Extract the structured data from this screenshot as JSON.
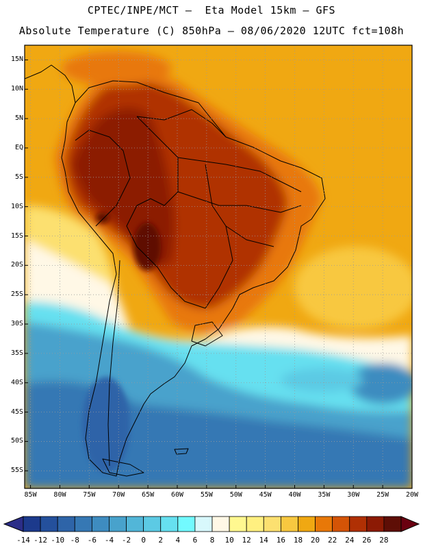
{
  "title": {
    "line1": "CPTEC/INPE/MCT –  Eta Model 15km – GFS",
    "line2": "Absolute Temperature (C) 850hPa – 08/06/2020 12UTC fct=108h"
  },
  "map": {
    "lat_labels": [
      "15N",
      "10N",
      "5N",
      "EQ",
      "5S",
      "10S",
      "15S",
      "20S",
      "25S",
      "30S",
      "35S",
      "40S",
      "45S",
      "50S",
      "55S"
    ],
    "lat_values": [
      15,
      10,
      5,
      0,
      -5,
      -10,
      -15,
      -20,
      -25,
      -30,
      -35,
      -40,
      -45,
      -50,
      -55
    ],
    "lon_labels": [
      "85W",
      "80W",
      "75W",
      "70W",
      "65W",
      "60W",
      "55W",
      "50W",
      "45W",
      "40W",
      "35W",
      "30W",
      "25W",
      "20W"
    ],
    "lon_values": [
      -85,
      -80,
      -75,
      -70,
      -65,
      -60,
      -55,
      -50,
      -45,
      -40,
      -35,
      -30,
      -25,
      -20
    ],
    "lat_range": [
      -58,
      17.5
    ],
    "lon_range": [
      -86,
      -20
    ]
  },
  "colorbar": {
    "labels": [
      "-14",
      "-12",
      "-10",
      "-8",
      "-6",
      "-4",
      "-2",
      "0",
      "2",
      "4",
      "6",
      "8",
      "10",
      "12",
      "14",
      "16",
      "18",
      "20",
      "22",
      "24",
      "26",
      "28"
    ],
    "values": [
      -14,
      -12,
      -10,
      -8,
      -6,
      -4,
      -2,
      0,
      2,
      4,
      6,
      8,
      10,
      12,
      14,
      16,
      18,
      20,
      22,
      24,
      26,
      28
    ],
    "colors": [
      "#1c3a8c",
      "#24509c",
      "#2e64a8",
      "#3678b4",
      "#3e8cc0",
      "#48a2cc",
      "#52b6d8",
      "#5ccae4",
      "#66e0f0",
      "#72faff",
      "#d8f8fc",
      "#fff8e6",
      "#fff890",
      "#fff080",
      "#fce070",
      "#f8c840",
      "#f0a812",
      "#e87808",
      "#d45406",
      "#b03004",
      "#8c1a04",
      "#5e0e06"
    ],
    "under_color": "#2b2d88",
    "over_color": "#6a0010",
    "unit": "C"
  }
}
